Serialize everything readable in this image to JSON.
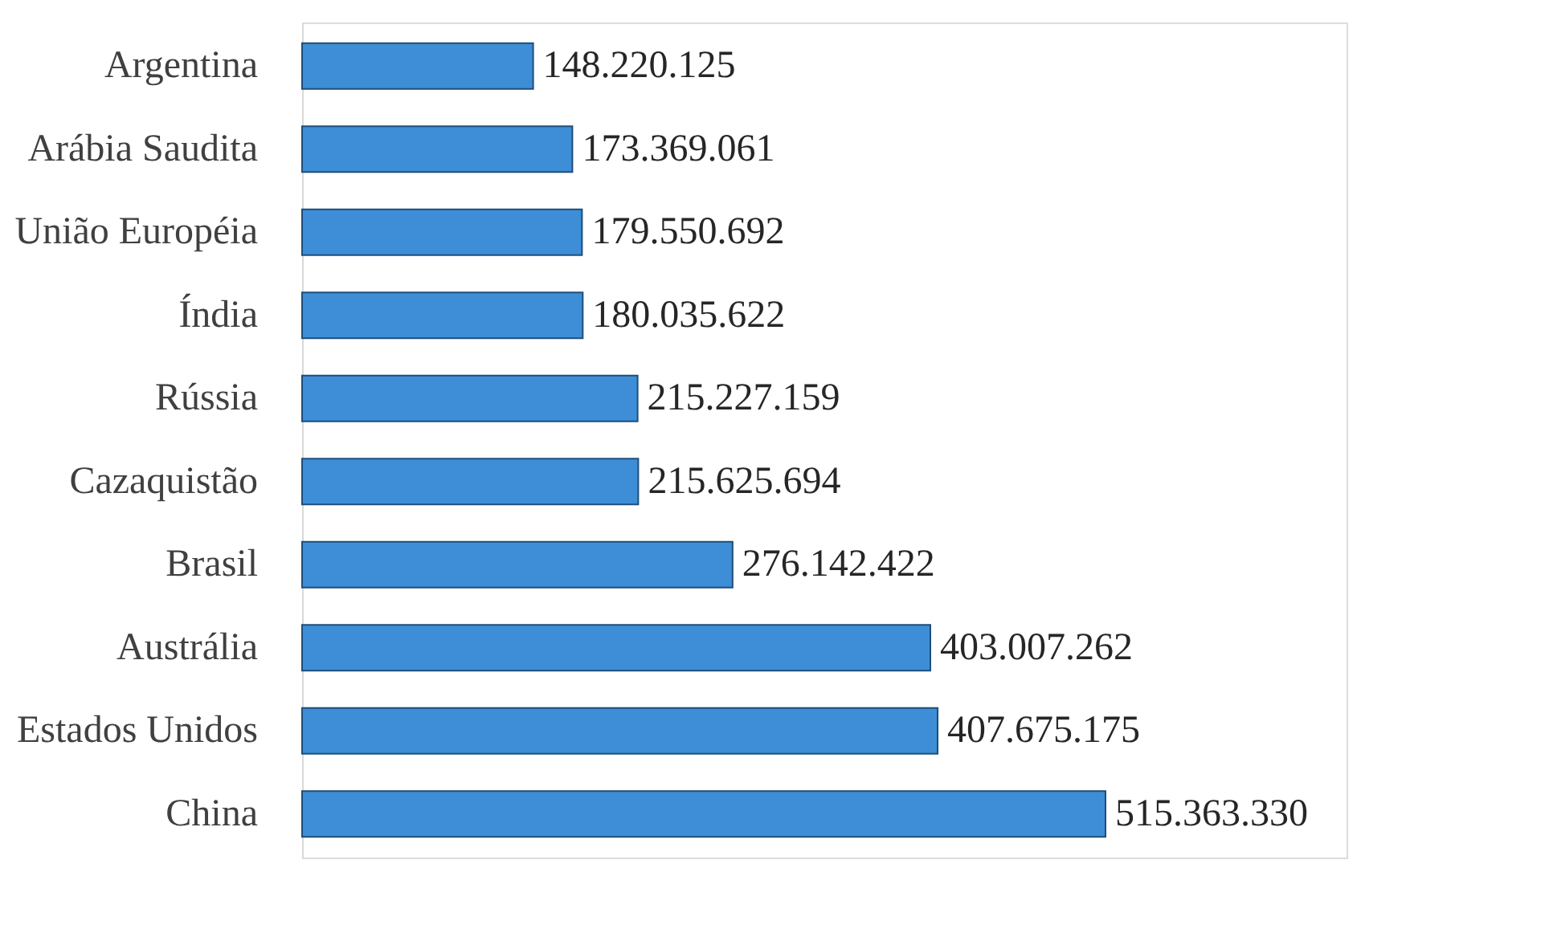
{
  "chart_data": {
    "type": "bar",
    "orientation": "horizontal",
    "categories": [
      "Argentina",
      "Arábia Saudita",
      "União Européia",
      "Índia",
      "Rússia",
      "Cazaquistão",
      "Brasil",
      "Austrália",
      "Estados Unidos",
      "China"
    ],
    "values": [
      148220125,
      173369061,
      179550692,
      180035622,
      215227159,
      215625694,
      276142422,
      403007262,
      407675175,
      515363330
    ],
    "value_labels": [
      "148.220.125",
      "173.369.061",
      "179.550.692",
      "180.035.622",
      "215.227.159",
      "215.625.694",
      "276.142.422",
      "403.007.262",
      "407.675.175",
      "515.363.330"
    ],
    "color": "#3d8ed6"
  }
}
